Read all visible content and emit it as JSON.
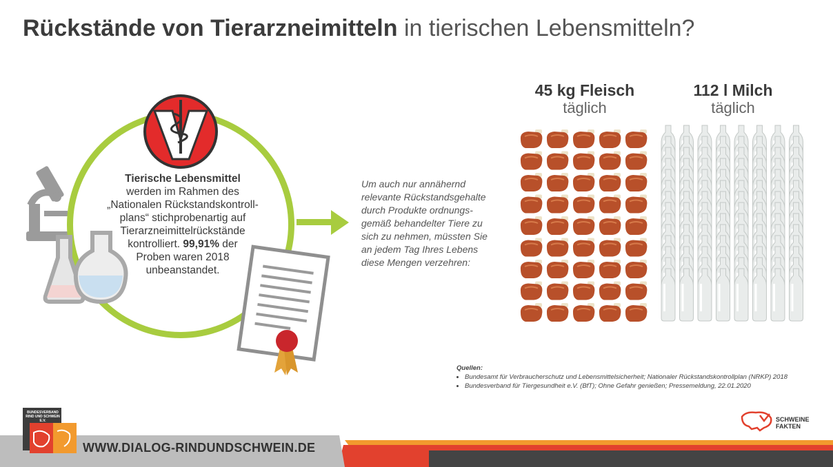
{
  "title": {
    "bold": "Rückstände von Tierarzneimitteln",
    "light": "in tierischen Lebensmitteln?"
  },
  "center": {
    "bold": "Tierische Lebensmittel",
    "line1": "werden im Rahmen des",
    "line2": "„Nationalen Rückstandskontroll-",
    "line3": "plans“ stichprobenartig auf",
    "line4": "Tierarzneimittelrückstände",
    "line5a": "kontrolliert.",
    "line5b": "99,91%",
    "line5c": "der",
    "line6": "Proben waren 2018",
    "line7": "unbeanstandet."
  },
  "intro": [
    "Um auch nur annähernd",
    "relevante Rückstandsgehalte",
    "durch Produkte ordnungs-",
    "gemäß behandelter Tiere zu",
    "sich zu nehmen, müssten Sie",
    "an jedem Tag Ihres Lebens",
    "diese Mengen verzehren:"
  ],
  "meat": {
    "amount": "45 kg Fleisch",
    "period": "täglich",
    "count": 45
  },
  "milk": {
    "amount": "112 l Milch",
    "period": "täglich",
    "count": 112
  },
  "sources": {
    "heading": "Quellen:",
    "items": [
      "Bundesamt für Verbraucherschutz und Lebensmittelsicherheit; Nationaler Rückstandskontrollplan (NRKP) 2018",
      "Bundesverband für Tiergesundheit e.V. (BfT); Ohne Gefahr genießen; Pressemeldung, 22.01.2020"
    ]
  },
  "footer": {
    "url": "WWW.DIALOG-RINDUNDSCHWEIN.DE",
    "logo_left_text": "BUNDESVERBAND RIND UND SCHWEIN E.V.",
    "logo_right_line1": "SCHWEINE",
    "logo_right_line2": "FAKTEN"
  },
  "colors": {
    "green": "#a8cc3f",
    "red": "#e2412e",
    "orange": "#f29a2e",
    "meat": "#b8502a",
    "dark": "#444444"
  }
}
